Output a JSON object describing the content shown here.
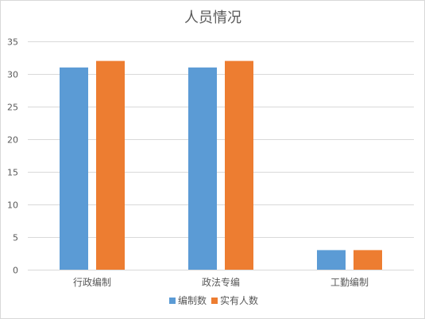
{
  "chart_data": {
    "type": "bar",
    "title": "人员情况",
    "xlabel": "",
    "ylabel": "",
    "categories": [
      "行政编制",
      "政法专编",
      "工勤编制"
    ],
    "series": [
      {
        "name": "编制数",
        "values": [
          31,
          31,
          3
        ],
        "color": "#5b9bd5"
      },
      {
        "name": "实有人数",
        "values": [
          32,
          32,
          3
        ],
        "color": "#ed7d31"
      }
    ],
    "ylim": [
      0,
      35
    ],
    "yticks": [
      0,
      5,
      10,
      15,
      20,
      25,
      30,
      35
    ],
    "grid": true,
    "legend_position": "bottom"
  }
}
